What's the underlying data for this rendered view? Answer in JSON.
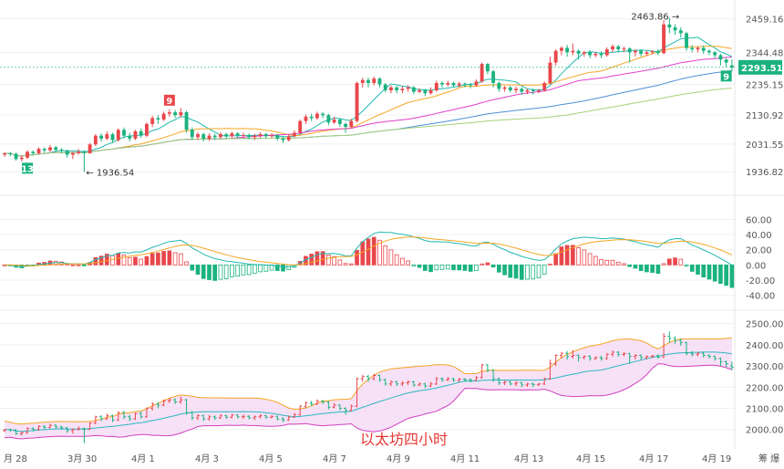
{
  "colors": {
    "up": "#e8474b",
    "down": "#1bb27e",
    "ma_fast": "#22b8b0",
    "ma_mid": "#f5a623",
    "ma_slow1": "#e040c8",
    "ma_slow2": "#4e8fd8",
    "ma_slow3": "#a6d27a",
    "boll_upper": "#f5a623",
    "boll_lower": "#d040c0",
    "boll_mid": "#2bb8c0",
    "boll_fill": "#f5d9f5",
    "price_tag": "#1bb27e"
  },
  "watermark": "以太坊四小时",
  "corner_text": "筹  爆",
  "x_labels": [
    "月 28",
    "3月 30",
    "4月 1",
    "4月 3",
    "4月 5",
    "4月 7",
    "4月 9",
    "4月 11",
    "4月 13",
    "4月 15",
    "4月 17",
    "4月 19"
  ],
  "chart_data": [
    {
      "type": "candlestick",
      "panel": "price",
      "y_ticks": [
        "2459.16",
        "2344.48",
        "2235.15",
        "2130.92",
        "2031.55",
        "1936.82"
      ],
      "ylim": [
        1900,
        2480
      ],
      "current_price": "2293.51",
      "high_label": "2463.86",
      "low_label": "1936.54",
      "badges": [
        "13",
        "9",
        "9"
      ],
      "candles": [
        [
          1995,
          2000,
          1988,
          2002
        ],
        [
          2000,
          1998,
          1990,
          2004
        ],
        [
          1998,
          1980,
          1975,
          2002
        ],
        [
          1980,
          1985,
          1972,
          1992
        ],
        [
          1985,
          2005,
          1980,
          2010
        ],
        [
          2005,
          2000,
          1992,
          2010
        ],
        [
          2000,
          2015,
          1995,
          2020
        ],
        [
          2015,
          2010,
          2002,
          2020
        ],
        [
          2010,
          2020,
          2005,
          2028
        ],
        [
          2020,
          2012,
          2005,
          2025
        ],
        [
          2012,
          2008,
          2000,
          2018
        ],
        [
          2008,
          1995,
          1985,
          2012
        ],
        [
          1995,
          2000,
          1980,
          2005
        ],
        [
          2000,
          2005,
          1995,
          2015
        ],
        [
          2005,
          2000,
          1936,
          2010
        ],
        [
          2000,
          2030,
          1998,
          2035
        ],
        [
          2030,
          2060,
          2025,
          2065
        ],
        [
          2060,
          2050,
          2040,
          2068
        ],
        [
          2050,
          2065,
          2045,
          2075
        ],
        [
          2065,
          2045,
          2035,
          2070
        ],
        [
          2045,
          2080,
          2040,
          2085
        ],
        [
          2080,
          2060,
          2050,
          2088
        ],
        [
          2060,
          2050,
          2040,
          2070
        ],
        [
          2050,
          2075,
          2045,
          2080
        ],
        [
          2075,
          2060,
          2052,
          2085
        ],
        [
          2060,
          2100,
          2055,
          2105
        ],
        [
          2100,
          2120,
          2090,
          2128
        ],
        [
          2120,
          2115,
          2100,
          2130
        ],
        [
          2115,
          2135,
          2110,
          2142
        ],
        [
          2135,
          2140,
          2125,
          2150
        ],
        [
          2140,
          2130,
          2120,
          2148
        ],
        [
          2130,
          2140,
          2122,
          2155
        ],
        [
          2140,
          2080,
          2070,
          2145
        ],
        [
          2080,
          2055,
          2045,
          2088
        ],
        [
          2055,
          2065,
          2045,
          2072
        ],
        [
          2065,
          2050,
          2040,
          2070
        ],
        [
          2050,
          2060,
          2042,
          2068
        ],
        [
          2060,
          2055,
          2045,
          2066
        ],
        [
          2055,
          2065,
          2050,
          2072
        ],
        [
          2065,
          2058,
          2050,
          2070
        ],
        [
          2058,
          2068,
          2052,
          2074
        ],
        [
          2068,
          2060,
          2052,
          2072
        ],
        [
          2060,
          2062,
          2050,
          2070
        ],
        [
          2062,
          2055,
          2048,
          2068
        ],
        [
          2055,
          2060,
          2045,
          2066
        ],
        [
          2060,
          2065,
          2052,
          2072
        ],
        [
          2065,
          2058,
          2050,
          2070
        ],
        [
          2058,
          2062,
          2052,
          2068
        ],
        [
          2062,
          2050,
          2042,
          2066
        ],
        [
          2050,
          2045,
          2035,
          2058
        ],
        [
          2045,
          2058,
          2040,
          2065
        ],
        [
          2058,
          2070,
          2055,
          2078
        ],
        [
          2070,
          2110,
          2065,
          2115
        ],
        [
          2110,
          2125,
          2100,
          2132
        ],
        [
          2125,
          2120,
          2110,
          2135
        ],
        [
          2120,
          2135,
          2115,
          2142
        ],
        [
          2135,
          2130,
          2120,
          2140
        ],
        [
          2130,
          2105,
          2095,
          2135
        ],
        [
          2105,
          2115,
          2100,
          2125
        ],
        [
          2115,
          2100,
          2090,
          2120
        ],
        [
          2100,
          2090,
          2070,
          2105
        ],
        [
          2090,
          2110,
          2085,
          2118
        ],
        [
          2110,
          2240,
          2105,
          2245
        ],
        [
          2240,
          2250,
          2225,
          2258
        ],
        [
          2250,
          2240,
          2225,
          2258
        ],
        [
          2240,
          2255,
          2232,
          2262
        ],
        [
          2255,
          2235,
          2225,
          2260
        ],
        [
          2235,
          2215,
          2208,
          2240
        ],
        [
          2215,
          2225,
          2205,
          2232
        ],
        [
          2225,
          2215,
          2205,
          2230
        ],
        [
          2215,
          2220,
          2205,
          2228
        ],
        [
          2220,
          2225,
          2210,
          2232
        ],
        [
          2225,
          2210,
          2202,
          2230
        ],
        [
          2210,
          2215,
          2205,
          2222
        ],
        [
          2215,
          2205,
          2195,
          2220
        ],
        [
          2205,
          2215,
          2200,
          2225
        ],
        [
          2215,
          2240,
          2210,
          2248
        ],
        [
          2240,
          2235,
          2225,
          2246
        ],
        [
          2235,
          2240,
          2228,
          2248
        ],
        [
          2240,
          2232,
          2225,
          2244
        ],
        [
          2232,
          2238,
          2225,
          2244
        ],
        [
          2238,
          2236,
          2225,
          2242
        ],
        [
          2236,
          2232,
          2222,
          2240
        ],
        [
          2232,
          2245,
          2228,
          2252
        ],
        [
          2245,
          2305,
          2240,
          2310
        ],
        [
          2305,
          2280,
          2270,
          2308
        ],
        [
          2280,
          2240,
          2225,
          2285
        ],
        [
          2240,
          2220,
          2210,
          2245
        ],
        [
          2220,
          2225,
          2210,
          2230
        ],
        [
          2225,
          2215,
          2208,
          2230
        ],
        [
          2215,
          2220,
          2205,
          2228
        ],
        [
          2220,
          2210,
          2200,
          2225
        ],
        [
          2210,
          2215,
          2202,
          2220
        ],
        [
          2215,
          2212,
          2200,
          2222
        ],
        [
          2212,
          2215,
          2205,
          2220
        ],
        [
          2215,
          2240,
          2210,
          2245
        ],
        [
          2240,
          2310,
          2235,
          2330
        ],
        [
          2310,
          2350,
          2300,
          2355
        ],
        [
          2350,
          2360,
          2335,
          2365
        ],
        [
          2360,
          2345,
          2330,
          2370
        ],
        [
          2345,
          2350,
          2335,
          2375
        ],
        [
          2350,
          2340,
          2320,
          2355
        ],
        [
          2340,
          2345,
          2330,
          2350
        ],
        [
          2345,
          2335,
          2325,
          2352
        ],
        [
          2335,
          2340,
          2328,
          2345
        ],
        [
          2340,
          2335,
          2325,
          2348
        ],
        [
          2335,
          2355,
          2330,
          2362
        ],
        [
          2355,
          2365,
          2345,
          2372
        ],
        [
          2365,
          2355,
          2345,
          2370
        ],
        [
          2355,
          2358,
          2345,
          2365
        ],
        [
          2358,
          2345,
          2310,
          2362
        ],
        [
          2345,
          2350,
          2330,
          2355
        ],
        [
          2350,
          2340,
          2330,
          2355
        ],
        [
          2340,
          2345,
          2332,
          2350
        ],
        [
          2345,
          2348,
          2338,
          2352
        ],
        [
          2348,
          2342,
          2335,
          2355
        ],
        [
          2342,
          2440,
          2338,
          2455
        ],
        [
          2440,
          2430,
          2410,
          2463
        ],
        [
          2430,
          2420,
          2405,
          2440
        ],
        [
          2420,
          2410,
          2395,
          2430
        ],
        [
          2410,
          2360,
          2350,
          2415
        ],
        [
          2360,
          2355,
          2345,
          2370
        ],
        [
          2355,
          2360,
          2345,
          2365
        ],
        [
          2360,
          2350,
          2340,
          2368
        ],
        [
          2350,
          2345,
          2335,
          2355
        ],
        [
          2345,
          2335,
          2325,
          2350
        ],
        [
          2335,
          2320,
          2300,
          2340
        ],
        [
          2320,
          2310,
          2295,
          2325
        ],
        [
          2300,
          2293,
          2280,
          2320
        ]
      ]
    },
    {
      "type": "macd",
      "panel": "macd",
      "y_ticks": [
        "60.00",
        "40.00",
        "20.00",
        "0.00",
        "-20.00",
        "-40.00"
      ],
      "ylim": [
        -50,
        70
      ]
    },
    {
      "type": "bollinger",
      "panel": "bollinger",
      "y_ticks": [
        "2500.00",
        "2400.00",
        "2300.00",
        "2200.00",
        "2100.00",
        "2000.00"
      ],
      "ylim": [
        1960,
        2520
      ]
    }
  ]
}
